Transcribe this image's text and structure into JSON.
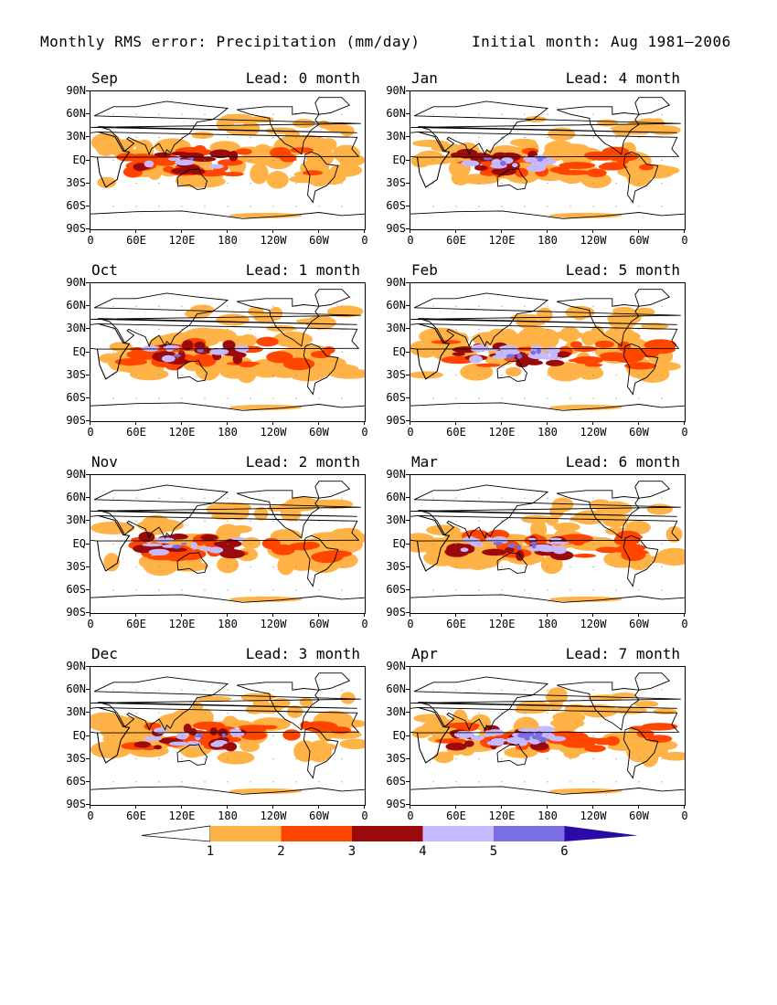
{
  "title_left": "Monthly RMS error: Precipitation (mm/day)",
  "title_right": "Initial month: Aug 1981–2006",
  "panels": [
    {
      "month": "Sep",
      "lead": "Lead: 0 month",
      "xticks": [
        "0",
        "60E",
        "120E",
        "180",
        "120W",
        "60W",
        "0"
      ]
    },
    {
      "month": "Jan",
      "lead": "Lead: 4 month",
      "xticks": [
        "0",
        "60E",
        "120E",
        "180",
        "120W",
        "60W",
        "0"
      ]
    },
    {
      "month": "Oct",
      "lead": "Lead: 1 month",
      "xticks": [
        "0",
        "60E",
        "120E",
        "180",
        "120W",
        "60W",
        "0"
      ]
    },
    {
      "month": "Feb",
      "lead": "Lead: 5 month",
      "xticks": [
        "0",
        "60E",
        "120E",
        "180",
        "120W",
        "60W",
        "0"
      ]
    },
    {
      "month": "Nov",
      "lead": "Lead: 2 month",
      "xticks": [
        "0",
        "60E",
        "120E",
        "180",
        "120W",
        "60W",
        "0"
      ]
    },
    {
      "month": "Mar",
      "lead": "Lead: 6 month",
      "xticks": [
        "0",
        "60E",
        "120E",
        "180",
        "120W",
        "60W",
        "0"
      ]
    },
    {
      "month": "Dec",
      "lead": "Lead: 3 month",
      "xticks": [
        "0",
        "60E",
        "120E",
        "180",
        "120W",
        "60W",
        "0"
      ]
    },
    {
      "month": "Apr",
      "lead": "Lead: 7 month",
      "xticks": [
        "0",
        "60E",
        "120E",
        "180",
        "120W",
        "60W",
        "0"
      ]
    }
  ],
  "yticks": [
    "90N",
    "60N",
    "30N",
    "EQ",
    "30S",
    "60S",
    "90S"
  ],
  "colorbar": {
    "levels": [
      "1",
      "2",
      "3",
      "4",
      "5",
      "6"
    ],
    "colors": [
      "#ffffff",
      "#ffb347",
      "#ff4500",
      "#9b0a0a",
      "#c7b9ff",
      "#7b6ee0",
      "#2a0aa8"
    ]
  }
}
